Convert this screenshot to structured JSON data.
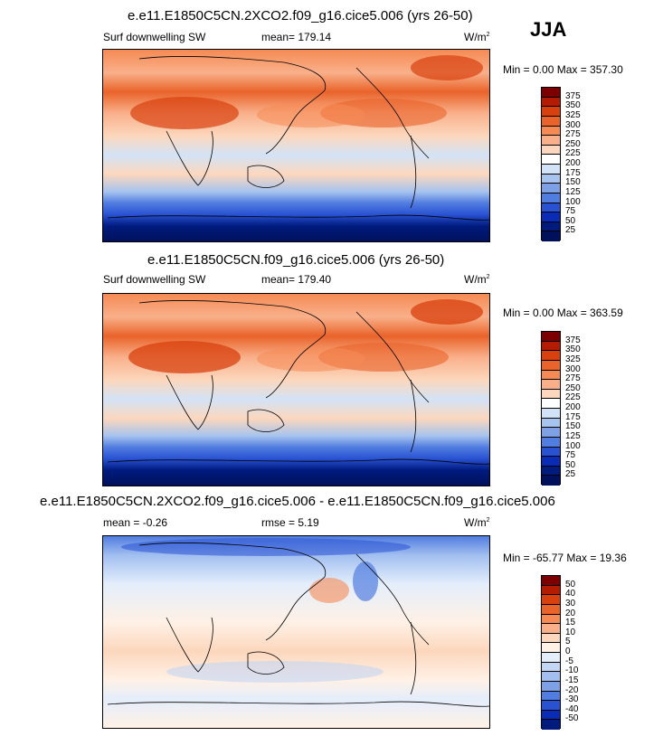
{
  "season": "JJA",
  "units_base": "W/m",
  "units_exp": "2",
  "panels": [
    {
      "title": "e.e11.E1850C5CN.2XCO2.f09_g16.cice5.006 (yrs 26-50)",
      "variable": "Surf downwelling SW",
      "stat1": "mean= 179.14",
      "stat2": "",
      "minmax": "Min =   0.00 Max = 357.30",
      "palette": "abs",
      "levels": [
        "375",
        "350",
        "325",
        "300",
        "275",
        "250",
        "225",
        "200",
        "175",
        "150",
        "125",
        "100",
        "75",
        "50",
        "25"
      ]
    },
    {
      "title": "e.e11.E1850C5CN.f09_g16.cice5.006 (yrs 26-50)",
      "variable": "Surf downwelling SW",
      "stat1": "mean= 179.40",
      "stat2": "",
      "minmax": "Min =   0.00 Max = 363.59",
      "palette": "abs",
      "levels": [
        "375",
        "350",
        "325",
        "300",
        "275",
        "250",
        "225",
        "200",
        "175",
        "150",
        "125",
        "100",
        "75",
        "50",
        "25"
      ]
    },
    {
      "title": "e.e11.E1850C5CN.2XCO2.f09_g16.cice5.006 - e.e11.E1850C5CN.f09_g16.cice5.006",
      "variable": "",
      "stat1": "mean =  -0.26",
      "stat2": "rmse =   5.19",
      "minmax": "Min = -65.77 Max =  19.36",
      "palette": "diff",
      "levels": [
        "50",
        "40",
        "30",
        "20",
        "15",
        "10",
        "5",
        "0",
        "-5",
        "-10",
        "-15",
        "-20",
        "-30",
        "-40",
        "-50"
      ]
    }
  ],
  "colors": {
    "abs": [
      "#7d0000",
      "#b31c00",
      "#d8400e",
      "#e9632a",
      "#f58a55",
      "#f9b08a",
      "#fcd7bd",
      "#ffffff",
      "#d3e3f7",
      "#a7c4ef",
      "#7ea1e6",
      "#517de0",
      "#2952d3",
      "#0a2bb6",
      "#001b7e",
      "#00105a"
    ],
    "diff": [
      "#7d0000",
      "#b31c00",
      "#d8400e",
      "#e9632a",
      "#f58a55",
      "#f9b08a",
      "#fcd7bd",
      "#fff1e6",
      "#e4eefb",
      "#c3d6f4",
      "#a2bff0",
      "#7ea1e6",
      "#517de0",
      "#2952d3",
      "#0a2bb6",
      "#001b7e"
    ]
  }
}
